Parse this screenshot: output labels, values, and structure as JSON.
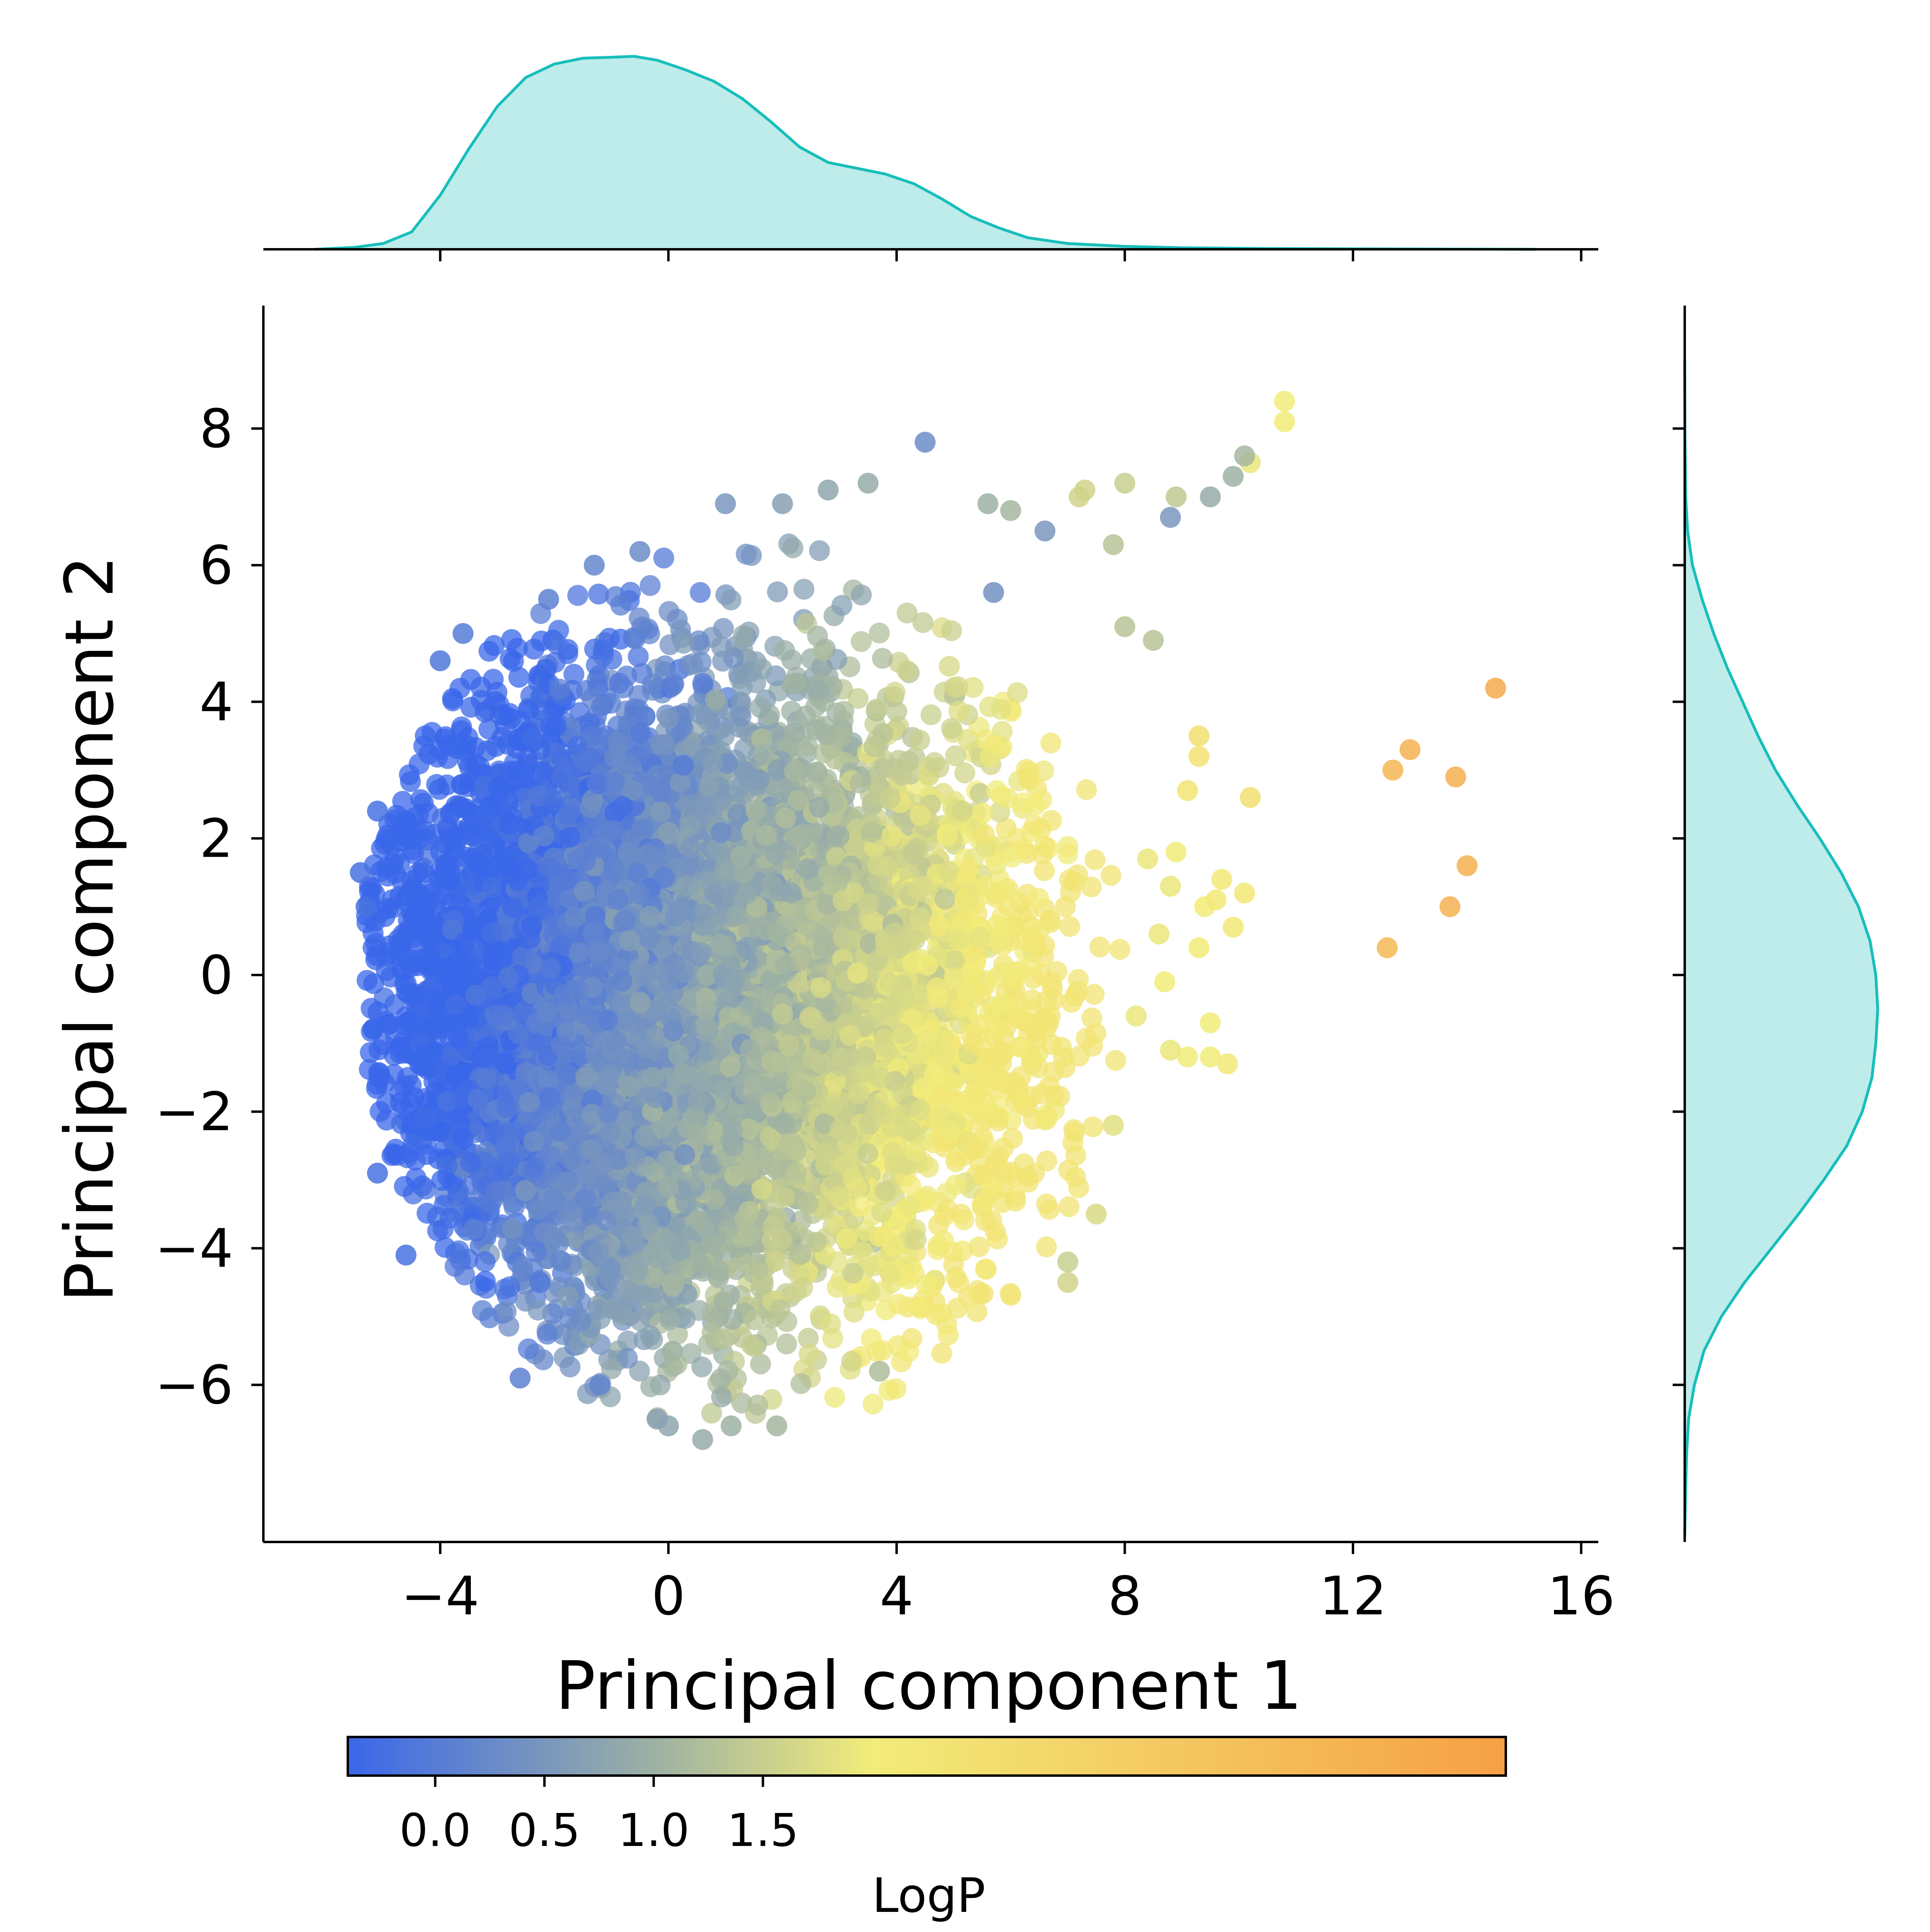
{
  "chart_data": {
    "type": "scatter",
    "subtype": "jointplot with marginal KDE and colorbar",
    "title": "",
    "xlabel": "Principal component 1",
    "ylabel": "Principal component 2",
    "xlim": [
      -7.1,
      16.3
    ],
    "ylim": [
      -8.3,
      9.8
    ],
    "x_ticks": [
      -4,
      0,
      4,
      8,
      12,
      16
    ],
    "x_tick_labels": [
      "−4",
      "0",
      "4",
      "8",
      "12",
      "16"
    ],
    "y_ticks": [
      -6,
      -4,
      -2,
      0,
      2,
      4,
      6,
      8
    ],
    "y_tick_labels": [
      "−6",
      "−4",
      "−2",
      "0",
      "2",
      "4",
      "6",
      "8"
    ],
    "grid": false,
    "legend": "none",
    "colorbar": {
      "label": "LogP",
      "orientation": "horizontal",
      "placement": "bottom",
      "range": [
        -0.4,
        4.9
      ],
      "ticks": [
        0.0,
        0.5,
        1.0,
        1.5
      ],
      "tick_labels": [
        "0.0",
        "0.5",
        "1.0",
        "1.5"
      ],
      "colormap": [
        {
          "value": -0.4,
          "color": "#3a67ea"
        },
        {
          "value": 1.0,
          "color": "#9db1a4"
        },
        {
          "value": 2.0,
          "color": "#f2ec79"
        },
        {
          "value": 4.9,
          "color": "#f6a045"
        }
      ]
    },
    "colors": {
      "marginal_line": "#17bebb",
      "marginal_fill": "#bdecea",
      "axis": "#000000",
      "background": "#ffffff"
    },
    "dense_cloud": {
      "description_of_bulk": "roughly 20,000 overlapping points",
      "x_center": -0.5,
      "y_center": -0.3,
      "x_extent": [
        -5.4,
        8.2
      ],
      "y_extent": [
        -6.9,
        7.0
      ],
      "logp_trend": "LogP increases with Principal component 1 and with lower Principal component 2"
    },
    "outlier_points": [
      {
        "x": 14.5,
        "y": 4.2,
        "logp": 4.5
      },
      {
        "x": 13.0,
        "y": 3.3,
        "logp": 4.2
      },
      {
        "x": 12.7,
        "y": 3.0,
        "logp": 4.1
      },
      {
        "x": 13.8,
        "y": 2.9,
        "logp": 4.3
      },
      {
        "x": 14.0,
        "y": 1.6,
        "logp": 4.3
      },
      {
        "x": 13.7,
        "y": 1.0,
        "logp": 4.2
      },
      {
        "x": 12.6,
        "y": 0.4,
        "logp": 4.0
      },
      {
        "x": 10.8,
        "y": 8.4,
        "logp": 2.0
      },
      {
        "x": 10.8,
        "y": 8.1,
        "logp": 2.0
      },
      {
        "x": 10.2,
        "y": 7.5,
        "logp": 1.9
      },
      {
        "x": 10.1,
        "y": 7.6,
        "logp": 1.1
      },
      {
        "x": 9.9,
        "y": 7.3,
        "logp": 1.0
      },
      {
        "x": 9.5,
        "y": 7.0,
        "logp": 0.9
      },
      {
        "x": 8.9,
        "y": 7.0,
        "logp": 1.4
      },
      {
        "x": 8.8,
        "y": 6.7,
        "logp": 0.5
      },
      {
        "x": 8.0,
        "y": 7.2,
        "logp": 1.5
      },
      {
        "x": 7.3,
        "y": 7.1,
        "logp": 1.6
      },
      {
        "x": 7.2,
        "y": 7.0,
        "logp": 1.6
      },
      {
        "x": 7.8,
        "y": 6.3,
        "logp": 1.3
      },
      {
        "x": 8.5,
        "y": 4.9,
        "logp": 1.3
      },
      {
        "x": 8.0,
        "y": 5.1,
        "logp": 1.3
      },
      {
        "x": 4.5,
        "y": 7.8,
        "logp": 0.3
      },
      {
        "x": 9.3,
        "y": 3.5,
        "logp": 2.5
      },
      {
        "x": 9.3,
        "y": 3.2,
        "logp": 2.4
      },
      {
        "x": 10.2,
        "y": 2.6,
        "logp": 2.5
      },
      {
        "x": 9.1,
        "y": 2.7,
        "logp": 2.3
      },
      {
        "x": 9.7,
        "y": 1.4,
        "logp": 2.1
      },
      {
        "x": 10.1,
        "y": 1.2,
        "logp": 2.2
      },
      {
        "x": 9.9,
        "y": 0.7,
        "logp": 2.1
      },
      {
        "x": 9.4,
        "y": 1.0,
        "logp": 2.0
      },
      {
        "x": 9.6,
        "y": 1.1,
        "logp": 2.1
      },
      {
        "x": 9.8,
        "y": -1.3,
        "logp": 2.2
      },
      {
        "x": 9.5,
        "y": -0.7,
        "logp": 2.0
      },
      {
        "x": 9.5,
        "y": -1.2,
        "logp": 2.0
      },
      {
        "x": 9.1,
        "y": -1.2,
        "logp": 2.0
      },
      {
        "x": 8.8,
        "y": -1.1,
        "logp": 1.9
      },
      {
        "x": 8.7,
        "y": -0.1,
        "logp": 2.0
      },
      {
        "x": 8.2,
        "y": -0.6,
        "logp": 1.9
      },
      {
        "x": 8.4,
        "y": 1.7,
        "logp": 1.9
      },
      {
        "x": 8.8,
        "y": 1.3,
        "logp": 1.9
      },
      {
        "x": 8.9,
        "y": 1.8,
        "logp": 2.0
      },
      {
        "x": 8.6,
        "y": 0.6,
        "logp": 1.9
      },
      {
        "x": 9.3,
        "y": 0.4,
        "logp": 2.0
      },
      {
        "x": 7.0,
        "y": -4.5,
        "logp": 1.6
      },
      {
        "x": 7.0,
        "y": -4.2,
        "logp": 1.5
      },
      {
        "x": 7.5,
        "y": -3.5,
        "logp": 1.7
      },
      {
        "x": 7.8,
        "y": -2.2,
        "logp": 1.8
      },
      {
        "x": 0.0,
        "y": -6.6,
        "logp": 0.8
      },
      {
        "x": -0.2,
        "y": -6.5,
        "logp": 0.7
      },
      {
        "x": 0.6,
        "y": -6.8,
        "logp": 0.9
      },
      {
        "x": 1.1,
        "y": -6.6,
        "logp": 1.0
      },
      {
        "x": 1.9,
        "y": -6.6,
        "logp": 1.1
      },
      {
        "x": 3.7,
        "y": -5.8,
        "logp": 1.2
      },
      {
        "x": -2.6,
        "y": -5.9,
        "logp": 0.1
      },
      {
        "x": -1.2,
        "y": -6.0,
        "logp": 0.2
      },
      {
        "x": -4.6,
        "y": -4.1,
        "logp": -0.2
      },
      {
        "x": -5.1,
        "y": -2.9,
        "logp": -0.2
      },
      {
        "x": -5.4,
        "y": 1.5,
        "logp": -0.2
      },
      {
        "x": -5.1,
        "y": 2.4,
        "logp": -0.2
      },
      {
        "x": -5.3,
        "y": 1.0,
        "logp": -0.2
      },
      {
        "x": -4.0,
        "y": 4.6,
        "logp": -0.1
      },
      {
        "x": -3.6,
        "y": 5.0,
        "logp": 0.0
      },
      {
        "x": -2.1,
        "y": 5.5,
        "logp": 0.1
      },
      {
        "x": -1.3,
        "y": 6.0,
        "logp": 0.2
      },
      {
        "x": -0.5,
        "y": 6.2,
        "logp": 0.3
      },
      {
        "x": 1.0,
        "y": 6.9,
        "logp": 0.5
      },
      {
        "x": 2.0,
        "y": 6.9,
        "logp": 0.7
      },
      {
        "x": 2.8,
        "y": 7.1,
        "logp": 0.8
      },
      {
        "x": 3.5,
        "y": 7.2,
        "logp": 0.9
      },
      {
        "x": 5.6,
        "y": 6.9,
        "logp": 1.0
      },
      {
        "x": 6.0,
        "y": 6.8,
        "logp": 1.1
      },
      {
        "x": 6.6,
        "y": 6.5,
        "logp": 0.5
      },
      {
        "x": 5.7,
        "y": 5.6,
        "logp": 0.4
      }
    ]
  },
  "marginal_top": {
    "variable": "Principal component 1",
    "kde": [
      {
        "x": -6.2,
        "d": 0.0
      },
      {
        "x": -5.5,
        "d": 0.01
      },
      {
        "x": -5.0,
        "d": 0.03
      },
      {
        "x": -4.5,
        "d": 0.09
      },
      {
        "x": -4.0,
        "d": 0.28
      },
      {
        "x": -3.5,
        "d": 0.52
      },
      {
        "x": -3.0,
        "d": 0.74
      },
      {
        "x": -2.5,
        "d": 0.89
      },
      {
        "x": -2.0,
        "d": 0.96
      },
      {
        "x": -1.5,
        "d": 0.99
      },
      {
        "x": -1.0,
        "d": 0.995
      },
      {
        "x": -0.6,
        "d": 1.0
      },
      {
        "x": -0.2,
        "d": 0.98
      },
      {
        "x": 0.3,
        "d": 0.93
      },
      {
        "x": 0.8,
        "d": 0.87
      },
      {
        "x": 1.3,
        "d": 0.78
      },
      {
        "x": 1.8,
        "d": 0.66
      },
      {
        "x": 2.3,
        "d": 0.53
      },
      {
        "x": 2.8,
        "d": 0.45
      },
      {
        "x": 3.3,
        "d": 0.42
      },
      {
        "x": 3.8,
        "d": 0.39
      },
      {
        "x": 4.3,
        "d": 0.34
      },
      {
        "x": 4.8,
        "d": 0.26
      },
      {
        "x": 5.3,
        "d": 0.17
      },
      {
        "x": 5.8,
        "d": 0.11
      },
      {
        "x": 6.3,
        "d": 0.06
      },
      {
        "x": 7.0,
        "d": 0.03
      },
      {
        "x": 8.0,
        "d": 0.015
      },
      {
        "x": 9.0,
        "d": 0.008
      },
      {
        "x": 10.5,
        "d": 0.004
      },
      {
        "x": 12.5,
        "d": 0.002
      },
      {
        "x": 15.2,
        "d": 0.0
      }
    ]
  },
  "marginal_right": {
    "variable": "Principal component 2",
    "kde": [
      {
        "y": -8.2,
        "d": 0.0
      },
      {
        "y": -7.5,
        "d": 0.005
      },
      {
        "y": -7.0,
        "d": 0.01
      },
      {
        "y": -6.5,
        "d": 0.02
      },
      {
        "y": -6.0,
        "d": 0.05
      },
      {
        "y": -5.5,
        "d": 0.1
      },
      {
        "y": -5.0,
        "d": 0.19
      },
      {
        "y": -4.5,
        "d": 0.31
      },
      {
        "y": -4.0,
        "d": 0.45
      },
      {
        "y": -3.5,
        "d": 0.59
      },
      {
        "y": -3.0,
        "d": 0.72
      },
      {
        "y": -2.5,
        "d": 0.84
      },
      {
        "y": -2.0,
        "d": 0.92
      },
      {
        "y": -1.5,
        "d": 0.97
      },
      {
        "y": -1.0,
        "d": 0.99
      },
      {
        "y": -0.5,
        "d": 1.0
      },
      {
        "y": 0.0,
        "d": 0.99
      },
      {
        "y": 0.5,
        "d": 0.96
      },
      {
        "y": 1.0,
        "d": 0.9
      },
      {
        "y": 1.5,
        "d": 0.81
      },
      {
        "y": 2.0,
        "d": 0.7
      },
      {
        "y": 2.5,
        "d": 0.58
      },
      {
        "y": 3.0,
        "d": 0.47
      },
      {
        "y": 3.5,
        "d": 0.38
      },
      {
        "y": 4.0,
        "d": 0.3
      },
      {
        "y": 4.5,
        "d": 0.22
      },
      {
        "y": 5.0,
        "d": 0.15
      },
      {
        "y": 5.5,
        "d": 0.09
      },
      {
        "y": 6.0,
        "d": 0.04
      },
      {
        "y": 6.5,
        "d": 0.015
      },
      {
        "y": 7.0,
        "d": 0.005
      },
      {
        "y": 8.0,
        "d": 0.001
      },
      {
        "y": 9.0,
        "d": 0.0
      }
    ]
  }
}
